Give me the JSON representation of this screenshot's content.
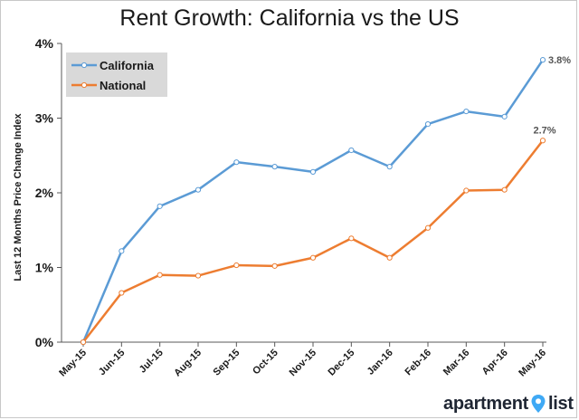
{
  "chart_data": {
    "type": "line",
    "title": "Rent Growth: California vs the US",
    "ylabel": "Last 12 Months Price Change Index",
    "xlabel": "",
    "categories": [
      "May-15",
      "Jun-15",
      "Jul-15",
      "Aug-15",
      "Sep-15",
      "Oct-15",
      "Nov-15",
      "Dec-15",
      "Jan-16",
      "Feb-16",
      "Mar-16",
      "Apr-16",
      "May-16"
    ],
    "series": [
      {
        "name": "California",
        "color": "#5b9bd5",
        "values": [
          0.0,
          1.22,
          1.82,
          2.04,
          2.41,
          2.35,
          2.28,
          2.57,
          2.35,
          2.92,
          3.09,
          3.02,
          3.78
        ],
        "end_label": "3.8%"
      },
      {
        "name": "National",
        "color": "#ed7d31",
        "values": [
          0.0,
          0.66,
          0.9,
          0.89,
          1.03,
          1.02,
          1.13,
          1.39,
          1.13,
          1.53,
          2.03,
          2.04,
          2.7
        ],
        "end_label": "2.7%"
      }
    ],
    "y_ticks": [
      "0%",
      "1%",
      "2%",
      "3%",
      "4%"
    ],
    "ylim": [
      0,
      4
    ],
    "grid": false,
    "legend_position": "top-left"
  },
  "brand": {
    "left_text": "apartment",
    "right_text": "list"
  }
}
